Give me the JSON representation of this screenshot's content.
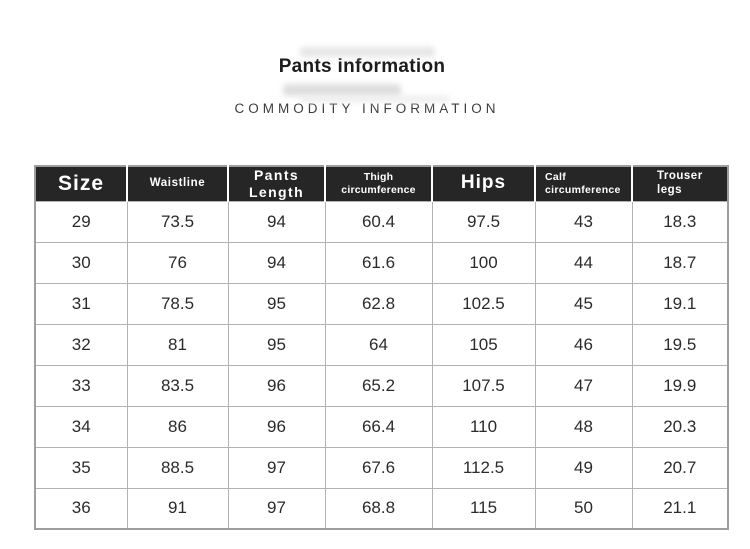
{
  "page": {
    "title": "Pants information",
    "subtitle": "COMMODITY INFORMATION"
  },
  "colors": {
    "header_background": "#262626",
    "header_text": "#ffffff",
    "body_text": "#2b2b2b",
    "grid_border": "#b2b2b2",
    "outer_border": "#9e9e9e"
  },
  "table": {
    "columns": [
      "Size",
      "Waistline",
      "Pants Length",
      "Thigh circumference",
      "Hips",
      "Calf\ncircumference",
      "Trouser\nlegs"
    ],
    "rows": [
      [
        "29",
        "73.5",
        "94",
        "60.4",
        "97.5",
        "43",
        "18.3"
      ],
      [
        "30",
        "76",
        "94",
        "61.6",
        "100",
        "44",
        "18.7"
      ],
      [
        "31",
        "78.5",
        "95",
        "62.8",
        "102.5",
        "45",
        "19.1"
      ],
      [
        "32",
        "81",
        "95",
        "64",
        "105",
        "46",
        "19.5"
      ],
      [
        "33",
        "83.5",
        "96",
        "65.2",
        "107.5",
        "47",
        "19.9"
      ],
      [
        "34",
        "86",
        "96",
        "66.4",
        "110",
        "48",
        "20.3"
      ],
      [
        "35",
        "88.5",
        "97",
        "67.6",
        "112.5",
        "49",
        "20.7"
      ],
      [
        "36",
        "91",
        "97",
        "68.8",
        "115",
        "50",
        "21.1"
      ]
    ]
  }
}
